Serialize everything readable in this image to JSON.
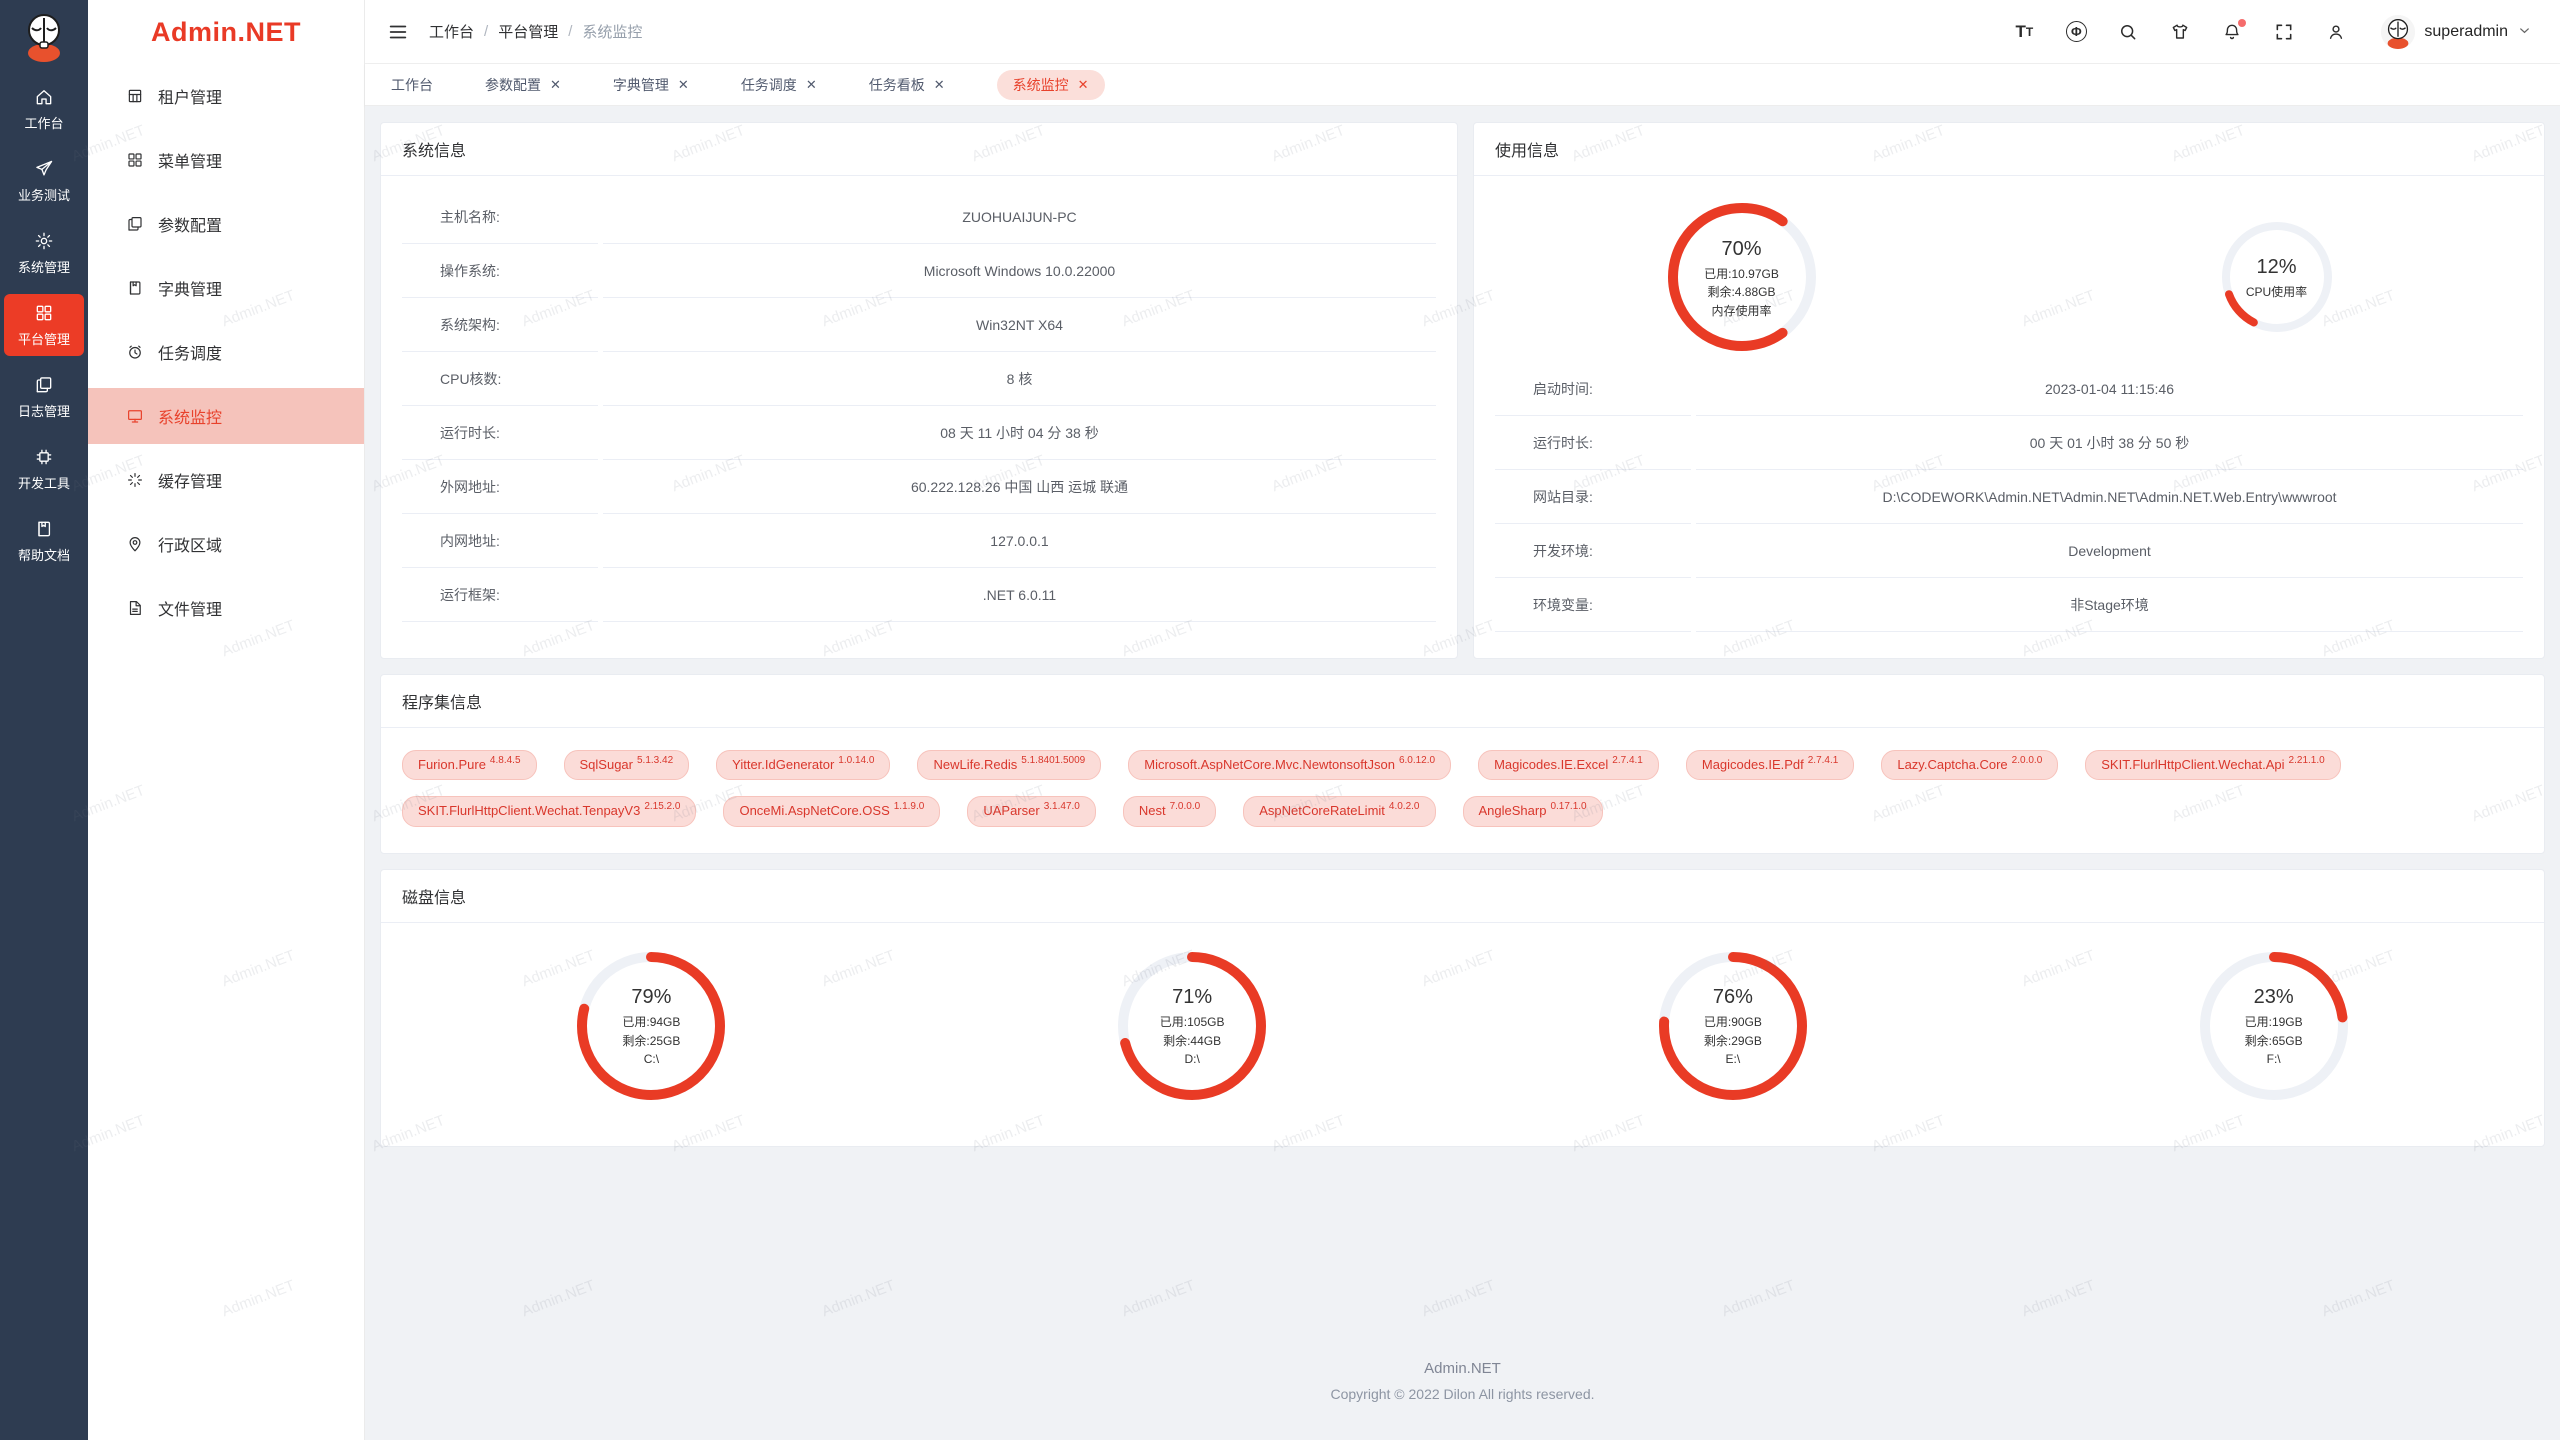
{
  "watermark": "Admin.NET",
  "colors": {
    "accent": "#e8422c",
    "donut_red": "#e93b25",
    "donut_track": "#eef1f6",
    "rail_bg": "#2e3c51",
    "active_menu_bg": "#f5c3bb"
  },
  "logo": {
    "text": "Admin.NET"
  },
  "rail": {
    "items": [
      {
        "id": "workbench",
        "label": "工作台",
        "icon": "home",
        "active": false
      },
      {
        "id": "biz-test",
        "label": "业务测试",
        "icon": "send",
        "active": false
      },
      {
        "id": "system-mgmt",
        "label": "系统管理",
        "icon": "gear",
        "active": false
      },
      {
        "id": "platform-mgmt",
        "label": "平台管理",
        "icon": "grid",
        "active": true
      },
      {
        "id": "log-mgmt",
        "label": "日志管理",
        "icon": "copy",
        "active": false
      },
      {
        "id": "dev-tools",
        "label": "开发工具",
        "icon": "chip",
        "active": false
      },
      {
        "id": "help-docs",
        "label": "帮助文档",
        "icon": "book",
        "active": false
      }
    ]
  },
  "menu": {
    "items": [
      {
        "id": "tenant",
        "label": "租户管理",
        "icon": "bank",
        "active": false
      },
      {
        "id": "menu",
        "label": "菜单管理",
        "icon": "grid",
        "active": false
      },
      {
        "id": "config",
        "label": "参数配置",
        "icon": "copy",
        "active": false
      },
      {
        "id": "dict",
        "label": "字典管理",
        "icon": "book",
        "active": false
      },
      {
        "id": "job",
        "label": "任务调度",
        "icon": "clock",
        "active": false
      },
      {
        "id": "monitor",
        "label": "系统监控",
        "icon": "monitor",
        "active": true
      },
      {
        "id": "cache",
        "label": "缓存管理",
        "icon": "spin",
        "active": false
      },
      {
        "id": "region",
        "label": "行政区域",
        "icon": "pin",
        "active": false
      },
      {
        "id": "file",
        "label": "文件管理",
        "icon": "file",
        "active": false
      }
    ]
  },
  "navbar": {
    "breadcrumb": [
      "工作台",
      "平台管理",
      "系统监控"
    ],
    "username": "superadmin"
  },
  "tabs": [
    {
      "id": "workbench",
      "label": "工作台",
      "closable": false,
      "active": false
    },
    {
      "id": "config",
      "label": "参数配置",
      "closable": true,
      "active": false
    },
    {
      "id": "dict",
      "label": "字典管理",
      "closable": true,
      "active": false
    },
    {
      "id": "job",
      "label": "任务调度",
      "closable": true,
      "active": false
    },
    {
      "id": "job-board",
      "label": "任务看板",
      "closable": true,
      "active": false
    },
    {
      "id": "monitor",
      "label": "系统监控",
      "closable": true,
      "active": true
    }
  ],
  "system_info": {
    "title": "系统信息",
    "rows": [
      {
        "label": "主机名称:",
        "value": "ZUOHUAIJUN-PC"
      },
      {
        "label": "操作系统:",
        "value": "Microsoft Windows 10.0.22000"
      },
      {
        "label": "系统架构:",
        "value": "Win32NT X64"
      },
      {
        "label": "CPU核数:",
        "value": "8 核"
      },
      {
        "label": "运行时长:",
        "value": "08 天 11 小时 04 分 38 秒"
      },
      {
        "label": "外网地址:",
        "value": "60.222.128.26 中国 山西 运城 联通"
      },
      {
        "label": "内网地址:",
        "value": "127.0.0.1"
      },
      {
        "label": "运行框架:",
        "value": ".NET 6.0.11"
      }
    ]
  },
  "usage": {
    "title": "使用信息",
    "gauges": [
      {
        "id": "memory",
        "pct": 70,
        "pct_label": "70%",
        "lines": [
          "已用:10.97GB",
          "剩余:4.88GB",
          "内存使用率"
        ],
        "size": 150,
        "stroke": 10,
        "rotation": 54
      },
      {
        "id": "cpu",
        "pct": 12,
        "pct_label": "12%",
        "lines": [
          "CPU使用率"
        ],
        "size": 112,
        "stroke": 8,
        "rotation": 117
      }
    ],
    "rows": [
      {
        "label": "启动时间:",
        "value": "2023-01-04 11:15:46"
      },
      {
        "label": "运行时长:",
        "value": "00 天 01 小时 38 分 50 秒"
      },
      {
        "label": "网站目录:",
        "value": "D:\\CODEWORK\\Admin.NET\\Admin.NET\\Admin.NET.Web.Entry\\wwwroot"
      },
      {
        "label": "开发环境:",
        "value": "Development"
      },
      {
        "label": "环境变量:",
        "value": "非Stage环境"
      }
    ]
  },
  "assemblies": {
    "title": "程序集信息",
    "tags": [
      {
        "name": "Furion.Pure",
        "version": "4.8.4.5"
      },
      {
        "name": "SqlSugar",
        "version": "5.1.3.42"
      },
      {
        "name": "Yitter.IdGenerator",
        "version": "1.0.14.0"
      },
      {
        "name": "NewLife.Redis",
        "version": "5.1.8401.5009"
      },
      {
        "name": "Microsoft.AspNetCore.Mvc.NewtonsoftJson",
        "version": "6.0.12.0"
      },
      {
        "name": "Magicodes.IE.Excel",
        "version": "2.7.4.1"
      },
      {
        "name": "Magicodes.IE.Pdf",
        "version": "2.7.4.1"
      },
      {
        "name": "Lazy.Captcha.Core",
        "version": "2.0.0.0"
      },
      {
        "name": "SKIT.FlurlHttpClient.Wechat.Api",
        "version": "2.21.1.0"
      },
      {
        "name": "SKIT.FlurlHttpClient.Wechat.TenpayV3",
        "version": "2.15.2.0"
      },
      {
        "name": "OnceMi.AspNetCore.OSS",
        "version": "1.1.9.0"
      },
      {
        "name": "UAParser",
        "version": "3.1.47.0"
      },
      {
        "name": "Nest",
        "version": "7.0.0.0"
      },
      {
        "name": "AspNetCoreRateLimit",
        "version": "4.0.2.0"
      },
      {
        "name": "AngleSharp",
        "version": "0.17.1.0"
      }
    ]
  },
  "disks": {
    "title": "磁盘信息",
    "drives": [
      {
        "id": "c",
        "pct": 79,
        "pct_label": "79%",
        "lines": [
          "已用:94GB",
          "剩余:25GB",
          "C:\\"
        ],
        "size": 150,
        "stroke": 10,
        "rotation": -90
      },
      {
        "id": "d",
        "pct": 71,
        "pct_label": "71%",
        "lines": [
          "已用:105GB",
          "剩余:44GB",
          "D:\\"
        ],
        "size": 150,
        "stroke": 10,
        "rotation": -90
      },
      {
        "id": "e",
        "pct": 76,
        "pct_label": "76%",
        "lines": [
          "已用:90GB",
          "剩余:29GB",
          "E:\\"
        ],
        "size": 150,
        "stroke": 10,
        "rotation": -90
      },
      {
        "id": "f",
        "pct": 23,
        "pct_label": "23%",
        "lines": [
          "已用:19GB",
          "剩余:65GB",
          "F:\\"
        ],
        "size": 150,
        "stroke": 10,
        "rotation": -90
      }
    ]
  },
  "footer": {
    "line1": "Admin.NET",
    "line2": "Copyright © 2022 Dilon All rights reserved."
  }
}
